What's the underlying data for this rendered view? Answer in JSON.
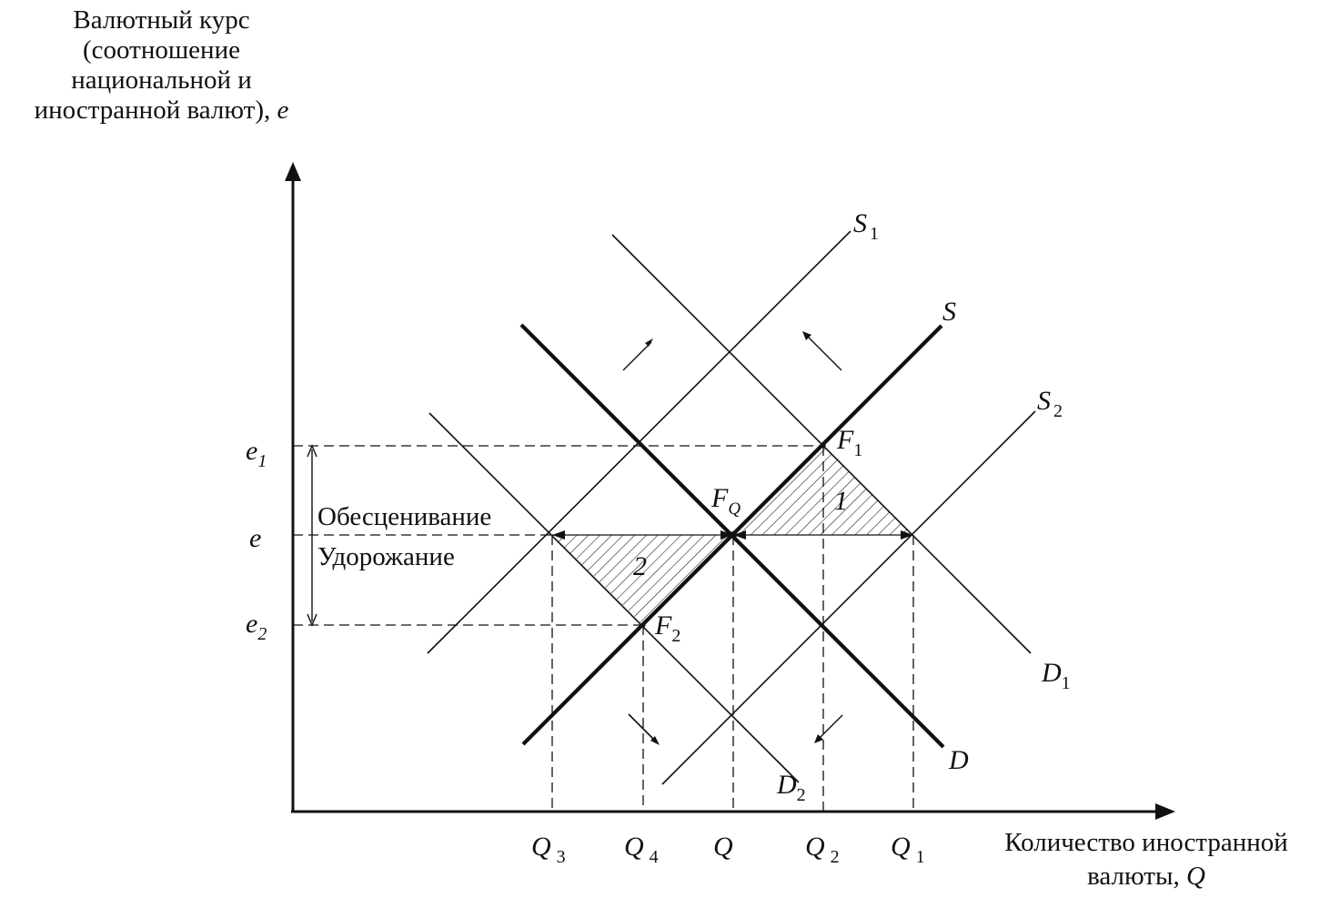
{
  "y_axis_title": {
    "lines": [
      "Валютный курс",
      "(соотношение",
      "национальной и",
      "иностранной валют),"
    ],
    "symbol": "e"
  },
  "x_axis_title": {
    "lines": [
      "Количество иностранной",
      "валюты,"
    ],
    "symbol": "Q"
  },
  "y_ticks": [
    {
      "id": "e1",
      "base": "e",
      "sub": "1"
    },
    {
      "id": "e",
      "base": "e",
      "sub": ""
    },
    {
      "id": "e2",
      "base": "e",
      "sub": "2"
    }
  ],
  "x_ticks": [
    {
      "id": "Q3",
      "base": "Q",
      "sub": "3"
    },
    {
      "id": "Q4",
      "base": "Q",
      "sub": "4"
    },
    {
      "id": "Q",
      "base": "Q",
      "sub": ""
    },
    {
      "id": "Q2",
      "base": "Q",
      "sub": "2"
    },
    {
      "id": "Q1",
      "base": "Q",
      "sub": "1"
    }
  ],
  "curves": [
    {
      "id": "S",
      "base": "S",
      "sub": "",
      "kind": "supply",
      "bold": true
    },
    {
      "id": "D",
      "base": "D",
      "sub": "",
      "kind": "demand",
      "bold": true
    },
    {
      "id": "S1",
      "base": "S",
      "sub": "1",
      "kind": "supply",
      "bold": false
    },
    {
      "id": "S2",
      "base": "S",
      "sub": "2",
      "kind": "supply",
      "bold": false
    },
    {
      "id": "D1",
      "base": "D",
      "sub": "1",
      "kind": "demand",
      "bold": false
    },
    {
      "id": "D2",
      "base": "D",
      "sub": "2",
      "kind": "demand",
      "bold": false
    }
  ],
  "points": [
    {
      "id": "F0",
      "base": "F",
      "sub": "Q"
    },
    {
      "id": "F1",
      "base": "F",
      "sub": "1"
    },
    {
      "id": "F2",
      "base": "F",
      "sub": "2"
    }
  ],
  "areas": [
    {
      "id": "area1",
      "label": "1"
    },
    {
      "id": "area2",
      "label": "2"
    }
  ],
  "annotations": {
    "devaluation": "Обесценивание",
    "appreciation": "Удорожание"
  },
  "colors": {
    "ink": "#111111",
    "background": "#ffffff"
  }
}
